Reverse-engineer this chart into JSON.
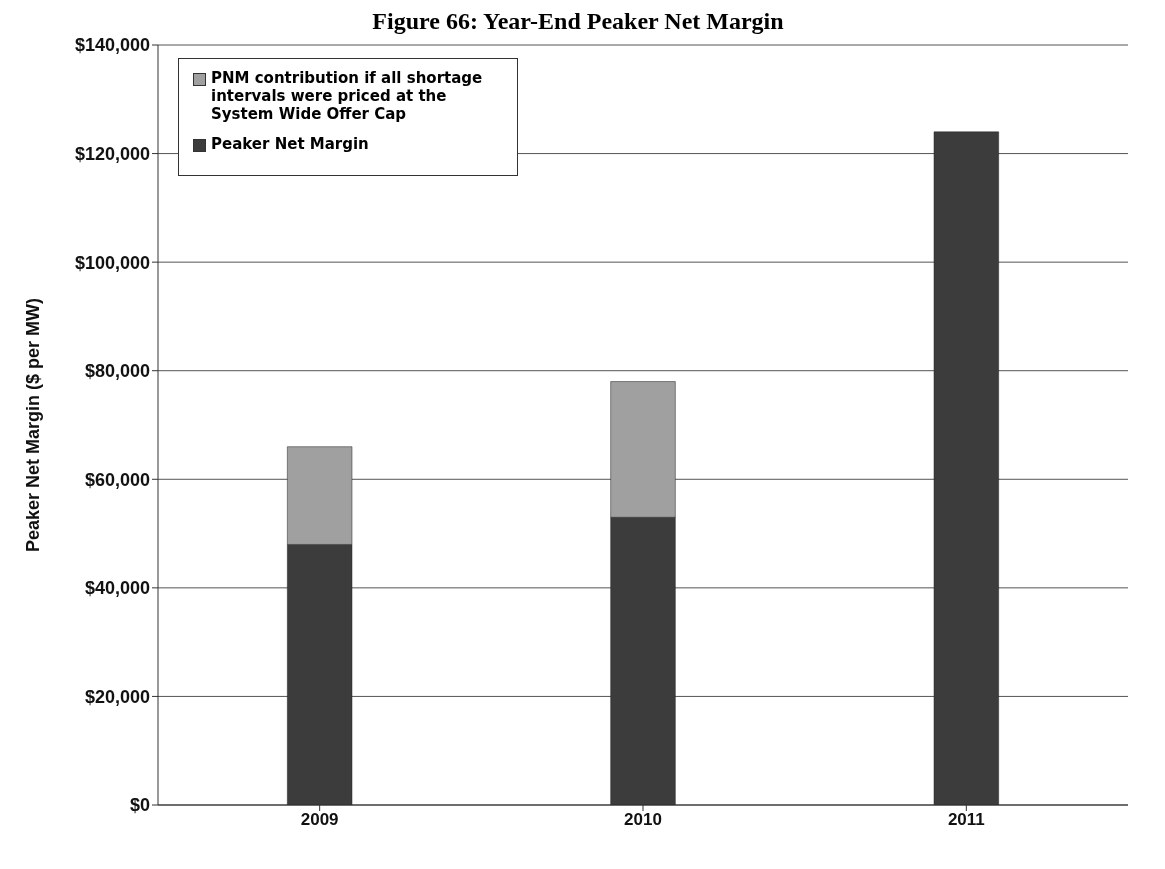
{
  "chart_data": {
    "type": "bar",
    "title": "Figure 66: Year-End Peaker Net Margin",
    "ylabel": "Peaker Net Margin ($ per MW)",
    "categories": [
      "2009",
      "2010",
      "2011"
    ],
    "series": [
      {
        "name": "Peaker Net Margin",
        "color": "#3c3c3c",
        "values": [
          48000,
          53000,
          124000
        ]
      },
      {
        "name": "PNM contribution if all shortage intervals were priced at the System Wide Offer Cap",
        "color": "#a0a0a0",
        "values": [
          18000,
          25000,
          null
        ]
      }
    ],
    "stacked": true,
    "ylim": [
      0,
      140000
    ],
    "yticks": [
      {
        "value": 0,
        "label": "$0"
      },
      {
        "value": 20000,
        "label": "$20,000"
      },
      {
        "value": 40000,
        "label": "$40,000"
      },
      {
        "value": 60000,
        "label": "$60,000"
      },
      {
        "value": 80000,
        "label": "$80,000"
      },
      {
        "value": 100000,
        "label": "$100,000"
      },
      {
        "value": 120000,
        "label": "$120,000"
      },
      {
        "value": 140000,
        "label": "$140,000"
      }
    ],
    "grid": "y",
    "legend": "top left"
  }
}
